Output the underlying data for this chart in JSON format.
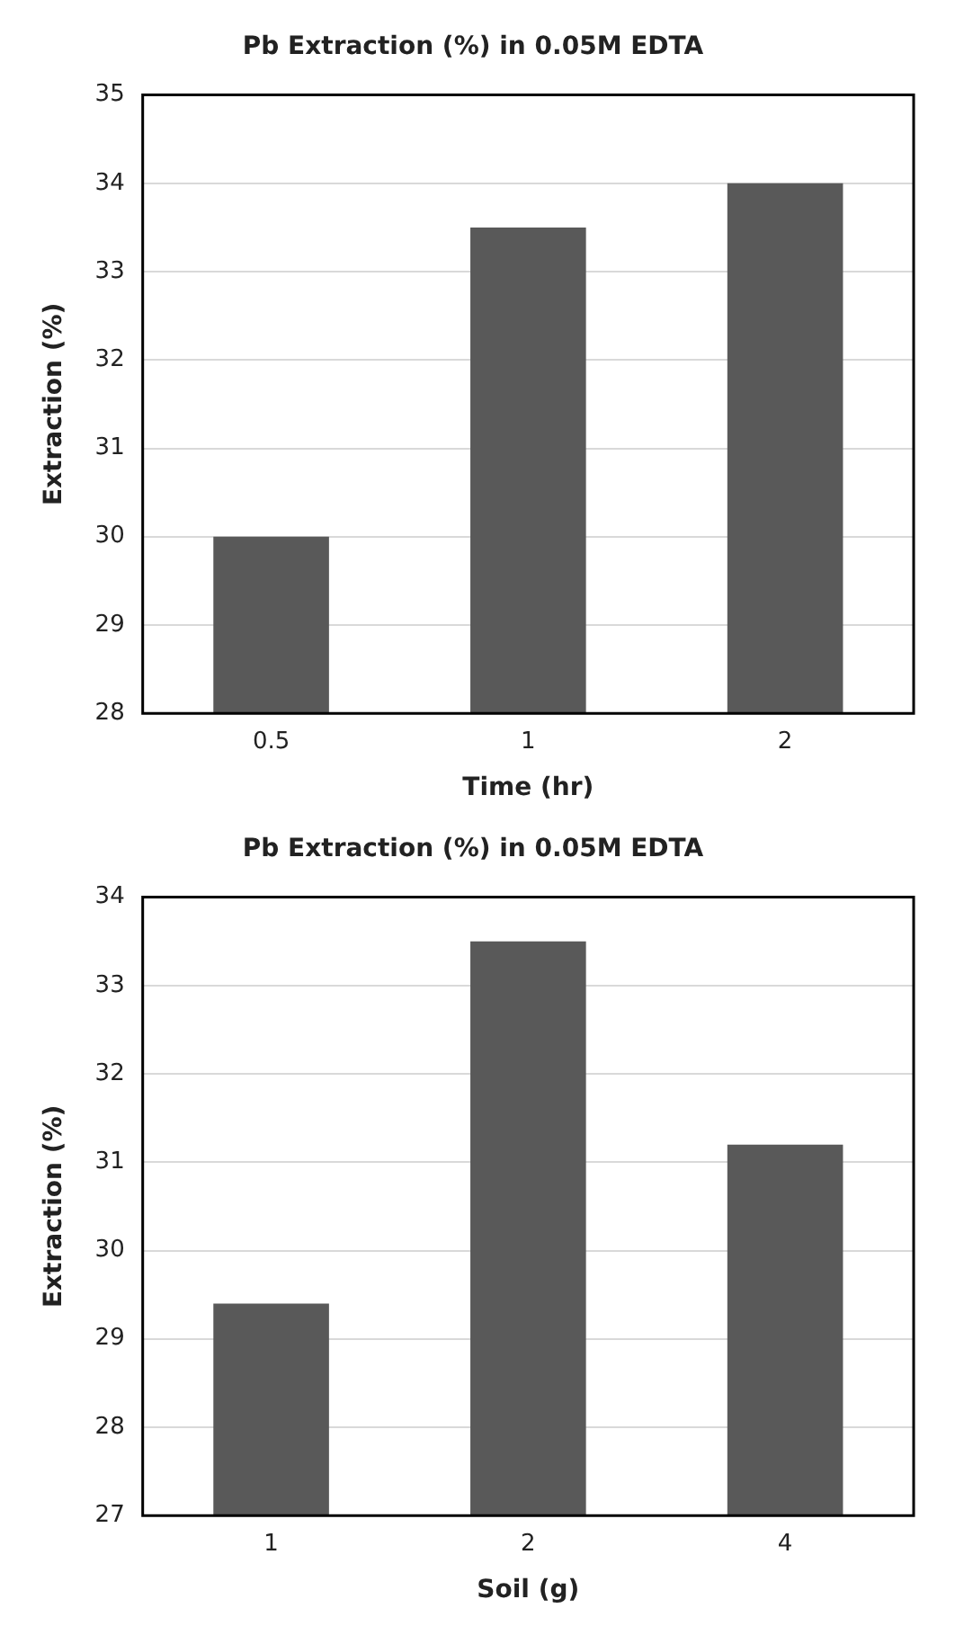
{
  "chart_data": [
    {
      "type": "bar",
      "title": "Pb Extraction (%) in 0.05M EDTA",
      "xlabel": "Time (hr)",
      "ylabel": "Extraction (%)",
      "categories": [
        "0.5",
        "1",
        "2"
      ],
      "values": [
        30,
        33.5,
        34
      ],
      "color": "#595959",
      "ylim": [
        28,
        35
      ],
      "yticks": [
        28,
        29,
        30,
        31,
        32,
        33,
        34,
        35
      ],
      "grid": "y"
    },
    {
      "type": "bar",
      "title": "Pb Extraction (%) in 0.05M EDTA",
      "xlabel": "Soil (g)",
      "ylabel": "Extraction (%)",
      "categories": [
        "1",
        "2",
        "4"
      ],
      "values": [
        29.4,
        33.5,
        31.2
      ],
      "color": "#595959",
      "ylim": [
        27,
        34
      ],
      "yticks": [
        27,
        28,
        29,
        30,
        31,
        32,
        33,
        34
      ],
      "grid": "y"
    }
  ]
}
